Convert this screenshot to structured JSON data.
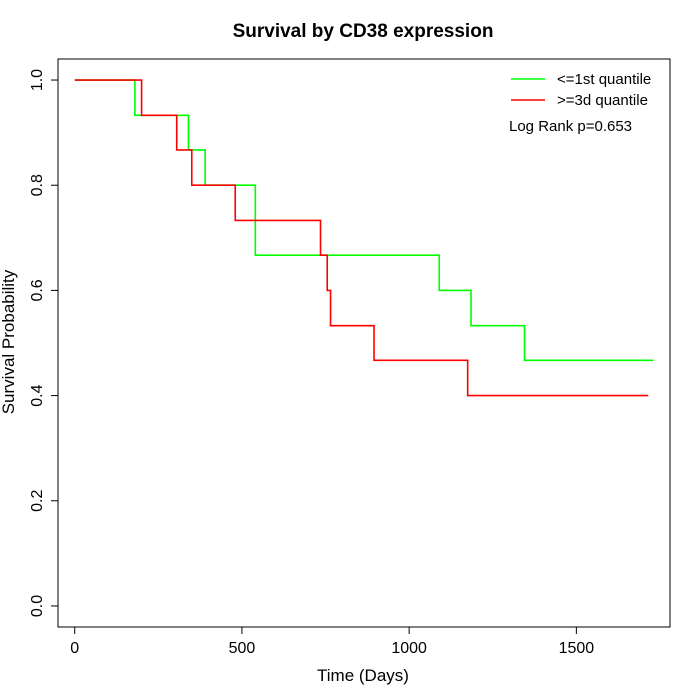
{
  "chart_data": {
    "type": "line",
    "subtype": "kaplan-meier step",
    "title": "Survival by CD38 expression",
    "xlabel": "Time (Days)",
    "ylabel": "Survival Probability",
    "xlim": [
      -50,
      1780
    ],
    "ylim": [
      -0.04,
      1.04
    ],
    "xticks": [
      0,
      500,
      1000,
      1500
    ],
    "xtick_labels": [
      "0",
      "500",
      "1000",
      "1500"
    ],
    "yticks": [
      0.0,
      0.2,
      0.4,
      0.6,
      0.8,
      1.0
    ],
    "ytick_labels": [
      "0.0",
      "0.2",
      "0.4",
      "0.6",
      "0.8",
      "1.0"
    ],
    "grid": false,
    "legend_position": "top-right",
    "annotation": "Log Rank p=0.653",
    "series": [
      {
        "name": "<=1st quantile",
        "color": "#00ff00",
        "steps": [
          [
            0,
            1.0
          ],
          [
            180,
            0.933
          ],
          [
            340,
            0.867
          ],
          [
            390,
            0.8
          ],
          [
            540,
            0.667
          ],
          [
            1090,
            0.6
          ],
          [
            1185,
            0.533
          ],
          [
            1345,
            0.467
          ],
          [
            1730,
            0.467
          ]
        ]
      },
      {
        "name": ">=3d quantile",
        "color": "#ff0000",
        "steps": [
          [
            0,
            1.0
          ],
          [
            200,
            0.933
          ],
          [
            305,
            0.867
          ],
          [
            350,
            0.8
          ],
          [
            480,
            0.733
          ],
          [
            735,
            0.667
          ],
          [
            755,
            0.6
          ],
          [
            765,
            0.533
          ],
          [
            895,
            0.467
          ],
          [
            1175,
            0.4
          ],
          [
            1715,
            0.4
          ]
        ]
      }
    ]
  }
}
